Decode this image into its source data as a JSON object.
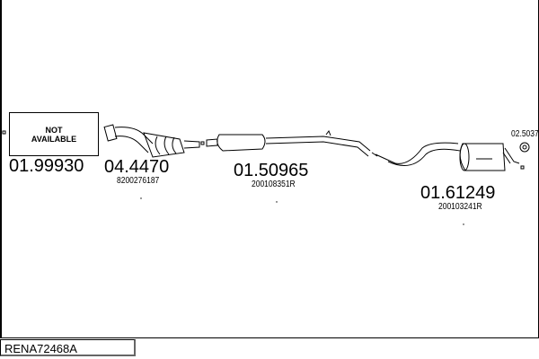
{
  "reference": "RENA72468A",
  "parts": [
    {
      "number": "01.99930",
      "oem": "",
      "placeholder": [
        "NOT",
        "AVAILABLE"
      ]
    },
    {
      "number": "04.4470",
      "oem": "8200276187"
    },
    {
      "number": "01.50965",
      "oem": "200108351R"
    },
    {
      "number": "01.61249",
      "oem": "200103241R"
    },
    {
      "number": "02.5037",
      "oem": ""
    }
  ]
}
